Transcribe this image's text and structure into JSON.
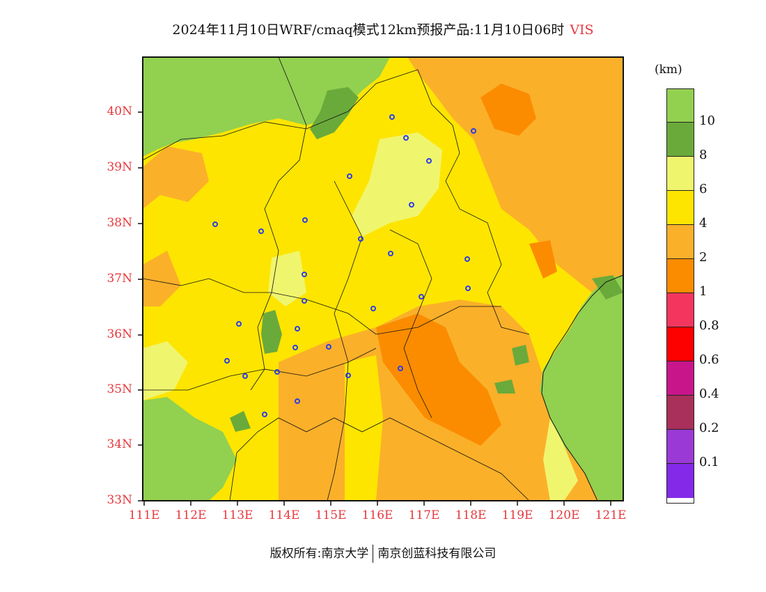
{
  "title": {
    "text": "2024年11月10日WRF/cmaq模式12km预报产品:11月10日06时",
    "variable": "VIS"
  },
  "unit": "(km)",
  "lat_labels": [
    "40N",
    "39N",
    "38N",
    "37N",
    "36N",
    "35N",
    "34N",
    "33N"
  ],
  "lon_labels": [
    "111E",
    "112E",
    "113E",
    "114E",
    "115E",
    "116E",
    "117E",
    "118E",
    "119E",
    "120E",
    "121E"
  ],
  "colorbar": {
    "labels": [
      "10",
      "8",
      "6",
      "4",
      "2",
      "1",
      "0.8",
      "0.6",
      "0.4",
      "0.2",
      "0.1"
    ],
    "colors": [
      "#92d050",
      "#6aaa3a",
      "#f0f56e",
      "#fde500",
      "#fbb02a",
      "#fb8c00",
      "#f4365f",
      "#fd0000",
      "#c8168a",
      "#a8305a",
      "#9b39d6",
      "#8429e8"
    ]
  },
  "footer": {
    "left": "版权所有:南京大学",
    "right": "南京创蓝科技有限公司"
  },
  "map_colors": {
    "green": "#92d050",
    "dark_green": "#6aaa3a",
    "light_yellow": "#f0f56e",
    "yellow": "#fde500",
    "light_orange": "#fbb02a",
    "orange": "#fb8c00",
    "city_marker": "#2b3ee6"
  }
}
